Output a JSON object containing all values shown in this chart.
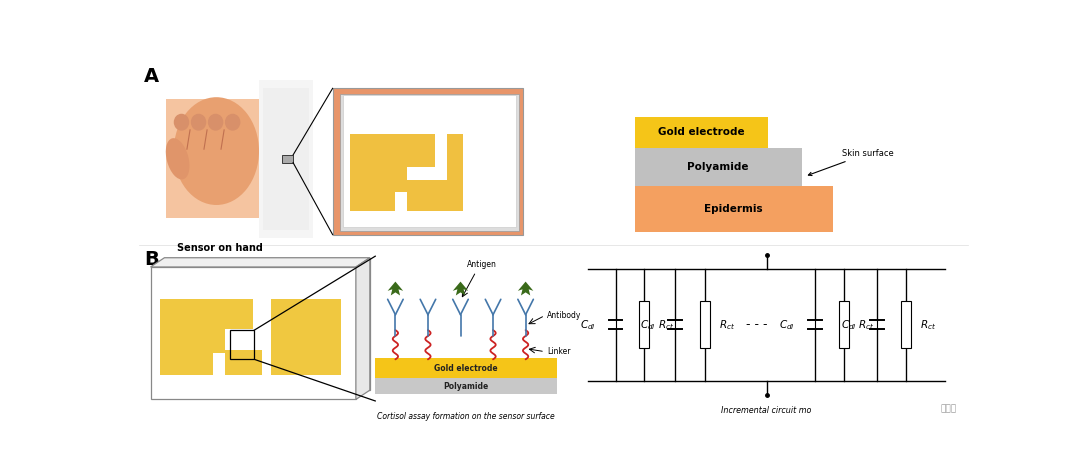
{
  "bg_color": "#ffffff",
  "panel_a_label": "A",
  "panel_b_label": "B",
  "sensor_on_hand_label": "Sensor on hand",
  "gold_electrode_label": "Gold electrode",
  "polyamide_label": "Polyamide",
  "epidermis_label": "Epidermis",
  "skin_surface_label": "Skin surface",
  "cortisol_label": "Cortisol assay formation on the sensor surface",
  "circuit_label": "Incremental circuit mo",
  "antigen_label": "Antigen",
  "antibody_label": "Antibody",
  "linker_label": "Linker",
  "gold_electrode_label2": "Gold electrode",
  "polyamide_label2": "Polyamide",
  "gold_color": "#F0C040",
  "gold_color_bright": "#F5C518",
  "skin_color": "#E8956A",
  "skin_light": "#F5C4A0",
  "polyamide_color": "#B8B8B8",
  "epidermis_color": "#F4A460",
  "frame_color": "#E8956A",
  "white_color": "#FFFFFF",
  "black_color": "#000000",
  "gray_light": "#E0E0E0"
}
